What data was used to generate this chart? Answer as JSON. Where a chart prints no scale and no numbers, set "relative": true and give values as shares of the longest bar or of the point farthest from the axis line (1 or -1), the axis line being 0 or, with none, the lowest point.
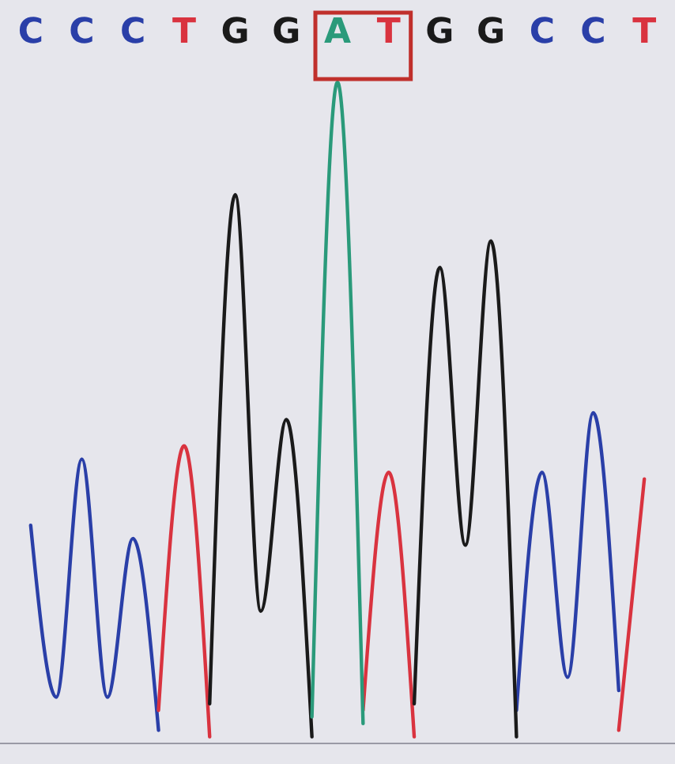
{
  "chart_data": {
    "type": "line",
    "relative": true,
    "tick_labels": "x",
    "marker": "none",
    "line_style": "solid",
    "categories": [
      "C",
      null,
      "C",
      null,
      "C",
      null,
      "T",
      null,
      "G",
      null,
      "G",
      null,
      "A",
      null,
      "T",
      null,
      "G",
      null,
      "G",
      null,
      "C",
      null,
      "C",
      null,
      "T"
    ],
    "series": [
      {
        "color": "#2a3fa8",
        "values": [
          0.33,
          0.07,
          0.43,
          0.07,
          0.31,
          0.02,
          null,
          null,
          null,
          null,
          null,
          null,
          null,
          null,
          null,
          null,
          null,
          null,
          null,
          0.05,
          0.41,
          0.1,
          0.5,
          0.08,
          null
        ]
      },
      {
        "color": "#d9333f",
        "values": [
          null,
          null,
          null,
          null,
          null,
          0.05,
          0.45,
          0.01,
          null,
          null,
          null,
          null,
          null,
          0.05,
          0.41,
          0.01,
          null,
          null,
          null,
          null,
          null,
          null,
          null,
          0.02,
          0.4
        ]
      },
      {
        "color": "#1a1a1a",
        "values": [
          null,
          null,
          null,
          null,
          null,
          null,
          null,
          0.06,
          0.83,
          0.2,
          0.49,
          0.01,
          null,
          null,
          null,
          0.06,
          0.72,
          0.3,
          0.76,
          0.01,
          null,
          null,
          null,
          null,
          null
        ]
      },
      {
        "color": "#2a9a7a",
        "values": [
          null,
          null,
          null,
          null,
          null,
          null,
          null,
          null,
          null,
          null,
          null,
          0.04,
          1,
          0.03,
          null,
          null,
          null,
          null,
          null,
          null,
          null,
          null,
          null,
          null,
          null
        ]
      }
    ]
  }
}
